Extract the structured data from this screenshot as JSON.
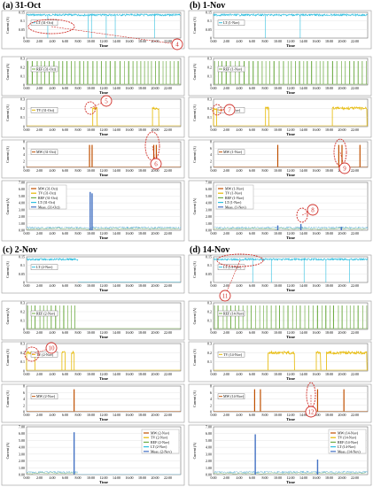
{
  "chart_data": [
    {
      "type": "composite",
      "panel_title": "(a) 31-Oct",
      "time_ticks": [
        "0:00",
        "2:00",
        "4:00",
        "6:00",
        "8:00",
        "10:00",
        "12:00",
        "14:00",
        "16:00",
        "18:00",
        "20:00",
        "22:00"
      ],
      "xlabel": "Time",
      "ylabel": "Current (A)",
      "callouts": [
        "4",
        "5",
        "6"
      ],
      "subplots": [
        {
          "device": "LT",
          "legend": "LT (31-Oct)",
          "color": "#2ebedf",
          "yticks": [
            "0.15",
            "0.1",
            "0.05",
            "0"
          ],
          "pattern": "constant",
          "level": 0.135,
          "dips": [
            3.3,
            9.6,
            10.1,
            12.4,
            13.8,
            19.9
          ],
          "events": []
        },
        {
          "device": "REF",
          "legend": "REF (31-Oct)",
          "color": "#70ad47",
          "yticks": [
            "0.3",
            "0.2",
            "0.1",
            "0"
          ],
          "pattern": "cycles",
          "level": 0.27,
          "events": []
        },
        {
          "device": "TV",
          "legend": "TV (31-Oct)",
          "color": "#e6b800",
          "yticks": [
            "0.3",
            "0.2",
            "0.1",
            "0"
          ],
          "pattern": "blocks",
          "level": 0.2,
          "events": [
            [
              10.3,
              11.0
            ],
            [
              19.6,
              20.6
            ]
          ]
        },
        {
          "device": "MW",
          "legend": "MW (31-Oct)",
          "color": "#c05000",
          "yticks": [
            "8",
            "6",
            "4",
            "2",
            "0"
          ],
          "pattern": "spikes",
          "level": 7,
          "events": [
            9.8,
            10.2,
            19.8,
            20.2
          ]
        },
        {
          "device": "ALL",
          "legend": [
            "MW (31-Oct)",
            "TV (31-Oct)",
            "REF (31-Oct)",
            "LT (31-Oct)",
            "Meas. (31-Oct)"
          ],
          "legend_colors": [
            "#c05000",
            "#e6b800",
            "#70ad47",
            "#2ebedf",
            "#4472c4"
          ],
          "yticks": [
            "7.00",
            "6.00",
            "5.00",
            "4.00",
            "3.00",
            "2.00",
            "1.00",
            "0.00"
          ],
          "pattern": "combined",
          "spikes": [
            [
              9.9,
              5.6
            ],
            [
              10.2,
              5.4
            ]
          ]
        }
      ]
    },
    {
      "type": "composite",
      "panel_title": "(b) 1-Nov",
      "time_ticks": [
        "0:00",
        "2:00",
        "4:00",
        "6:00",
        "8:00",
        "10:00",
        "12:00",
        "14:00",
        "16:00",
        "18:00",
        "20:00",
        "22:00"
      ],
      "xlabel": "Time",
      "ylabel": "Current (A)",
      "callouts": [
        "7",
        "8",
        "9"
      ],
      "subplots": [
        {
          "device": "LT",
          "legend": "LT (1-Nov)",
          "color": "#2ebedf",
          "yticks": [
            "0.15",
            "0.1",
            "0.05",
            "0"
          ],
          "pattern": "constant",
          "level": 0.135,
          "dips": [
            8.1,
            13.5
          ],
          "events": []
        },
        {
          "device": "REF",
          "legend": "REF (1-Nov)",
          "color": "#70ad47",
          "yticks": [
            "0.3",
            "0.2",
            "0.1",
            "0"
          ],
          "pattern": "cycles",
          "level": 0.27,
          "events": []
        },
        {
          "device": "TV",
          "legend": "TV (1-Nov)",
          "color": "#e6b800",
          "yticks": [
            "0.3",
            "0.2",
            "0.1",
            "0"
          ],
          "pattern": "blocks",
          "level": 0.2,
          "events": [
            [
              0.0,
              0.5
            ],
            [
              8.1,
              8.6
            ],
            [
              18.5,
              23.9
            ]
          ]
        },
        {
          "device": "MW",
          "legend": "MW (1-Nov)",
          "color": "#c05000",
          "yticks": [
            "8",
            "6",
            "4",
            "2",
            "0"
          ],
          "pattern": "spikes",
          "level": 7,
          "events": [
            10.0,
            19.5,
            20.0,
            22.8
          ]
        },
        {
          "device": "ALL",
          "legend": [
            "MW (1-Nov)",
            "TV (1-Nov)",
            "REF (1-Nov)",
            "LT (1-Nov)",
            "Meas. (1-Nov)"
          ],
          "legend_colors": [
            "#c05000",
            "#e6b800",
            "#70ad47",
            "#2ebedf",
            "#4472c4"
          ],
          "yticks": [
            "7.00",
            "6.00",
            "5.00",
            "4.00",
            "3.00",
            "2.00",
            "1.00",
            "0.00"
          ],
          "pattern": "combined",
          "spikes": [
            [
              10.0,
              0.7
            ],
            [
              13.6,
              0.9
            ],
            [
              19.9,
              0.5
            ]
          ]
        }
      ]
    },
    {
      "type": "composite",
      "panel_title": "(c) 2-Nov",
      "time_ticks": [
        "0:00",
        "2:00",
        "4:00",
        "6:00",
        "8:00",
        "10:00",
        "12:00",
        "14:00",
        "16:00",
        "18:00",
        "20:00",
        "22:00"
      ],
      "xlabel": "Time",
      "ylabel": "Current (A)",
      "callouts": [
        "10"
      ],
      "subplots": [
        {
          "device": "LT",
          "legend": "LT (2-Nov)",
          "color": "#2ebedf",
          "yticks": [
            "0.15",
            "0.1",
            "0.05",
            "0"
          ],
          "pattern": "partial",
          "level": 0.135,
          "until": 8.0,
          "events": []
        },
        {
          "device": "REF",
          "legend": "REF (2-Nov)",
          "color": "#70ad47",
          "yticks": [
            "0.3",
            "0.2",
            "0.1",
            "0"
          ],
          "pattern": "cycles",
          "level": 0.27,
          "until": 8.0,
          "events": []
        },
        {
          "device": "TV",
          "legend": "TV (2-Nov)",
          "color": "#e6b800",
          "yticks": [
            "0.3",
            "0.2",
            "0.1",
            "0"
          ],
          "pattern": "blocks",
          "level": 0.2,
          "events": [
            [
              0.0,
              1.3
            ],
            [
              5.5,
              6.0
            ],
            [
              7.0,
              7.4
            ]
          ]
        },
        {
          "device": "MW",
          "legend": "MW (2-Nov)",
          "color": "#c05000",
          "yticks": [
            "8",
            "6",
            "4",
            "2",
            "0"
          ],
          "pattern": "spikes",
          "level": 7,
          "events": [
            7.4
          ]
        },
        {
          "device": "ALL",
          "legend": [
            "MW (2-Nov)",
            "TV (2-Nov)",
            "REF (2-Nov)",
            "LT (2-Nov)",
            "Meas. (2-Nov)"
          ],
          "legend_colors": [
            "#c05000",
            "#e6b800",
            "#70ad47",
            "#2ebedf",
            "#4472c4"
          ],
          "yticks": [
            "7.00",
            "6.00",
            "5.00",
            "4.00",
            "3.00",
            "2.00",
            "1.00",
            "0.00"
          ],
          "pattern": "combined",
          "until": 8.0,
          "spikes": [
            [
              7.4,
              6.2
            ]
          ]
        }
      ]
    },
    {
      "type": "composite",
      "panel_title": "(d) 14-Nov",
      "time_ticks": [
        "0:00",
        "2:00",
        "4:00",
        "6:00",
        "8:00",
        "10:00",
        "12:00",
        "14:00",
        "16:00",
        "18:00",
        "20:00",
        "22:00"
      ],
      "xlabel": "Time",
      "ylabel": "Current (A)",
      "callouts": [
        "11",
        "12"
      ],
      "subplots": [
        {
          "device": "LT",
          "legend": "LT (14-Nov)",
          "color": "#2ebedf",
          "yticks": [
            "0.15",
            "0.1",
            "0.05",
            "0"
          ],
          "pattern": "constant",
          "level": 0.135,
          "dips": [
            6.1,
            9.0,
            14.1,
            17.5,
            21.2
          ],
          "events": []
        },
        {
          "device": "REF",
          "legend": "REF (14-Nov)",
          "color": "#70ad47",
          "yticks": [
            "0.3",
            "0.2",
            "0.1",
            "0"
          ],
          "pattern": "cycles",
          "level": 0.27,
          "events": []
        },
        {
          "device": "TV",
          "legend": "TV (14-Nov)",
          "color": "#e6b800",
          "yticks": [
            "0.3",
            "0.2",
            "0.1",
            "0"
          ],
          "pattern": "blocks",
          "level": 0.2,
          "events": [
            [
              8.5,
              12.6
            ],
            [
              16.0,
              16.7
            ],
            [
              17.6,
              23.9
            ]
          ]
        },
        {
          "device": "MW",
          "legend": "MW (14-Nov)",
          "color": "#c05000",
          "yticks": [
            "8",
            "6",
            "4",
            "2",
            "0"
          ],
          "pattern": "spikes",
          "level": 7,
          "events": [
            6.4,
            7.3,
            16.2,
            20.3
          ]
        },
        {
          "device": "ALL",
          "legend": [
            "MW (14-Nov)",
            "TV (14-Nov)",
            "REF (14-Nov)",
            "LT (14-Nov)",
            "Meas. (14-Nov)"
          ],
          "legend_colors": [
            "#c05000",
            "#e6b800",
            "#70ad47",
            "#2ebedf",
            "#4472c4"
          ],
          "yticks": [
            "7.00",
            "6.00",
            "5.00",
            "4.00",
            "3.00",
            "2.00",
            "1.00",
            "0.00"
          ],
          "pattern": "combined",
          "spikes": [
            [
              6.5,
              5.9
            ],
            [
              16.2,
              2.2
            ]
          ]
        }
      ]
    }
  ]
}
